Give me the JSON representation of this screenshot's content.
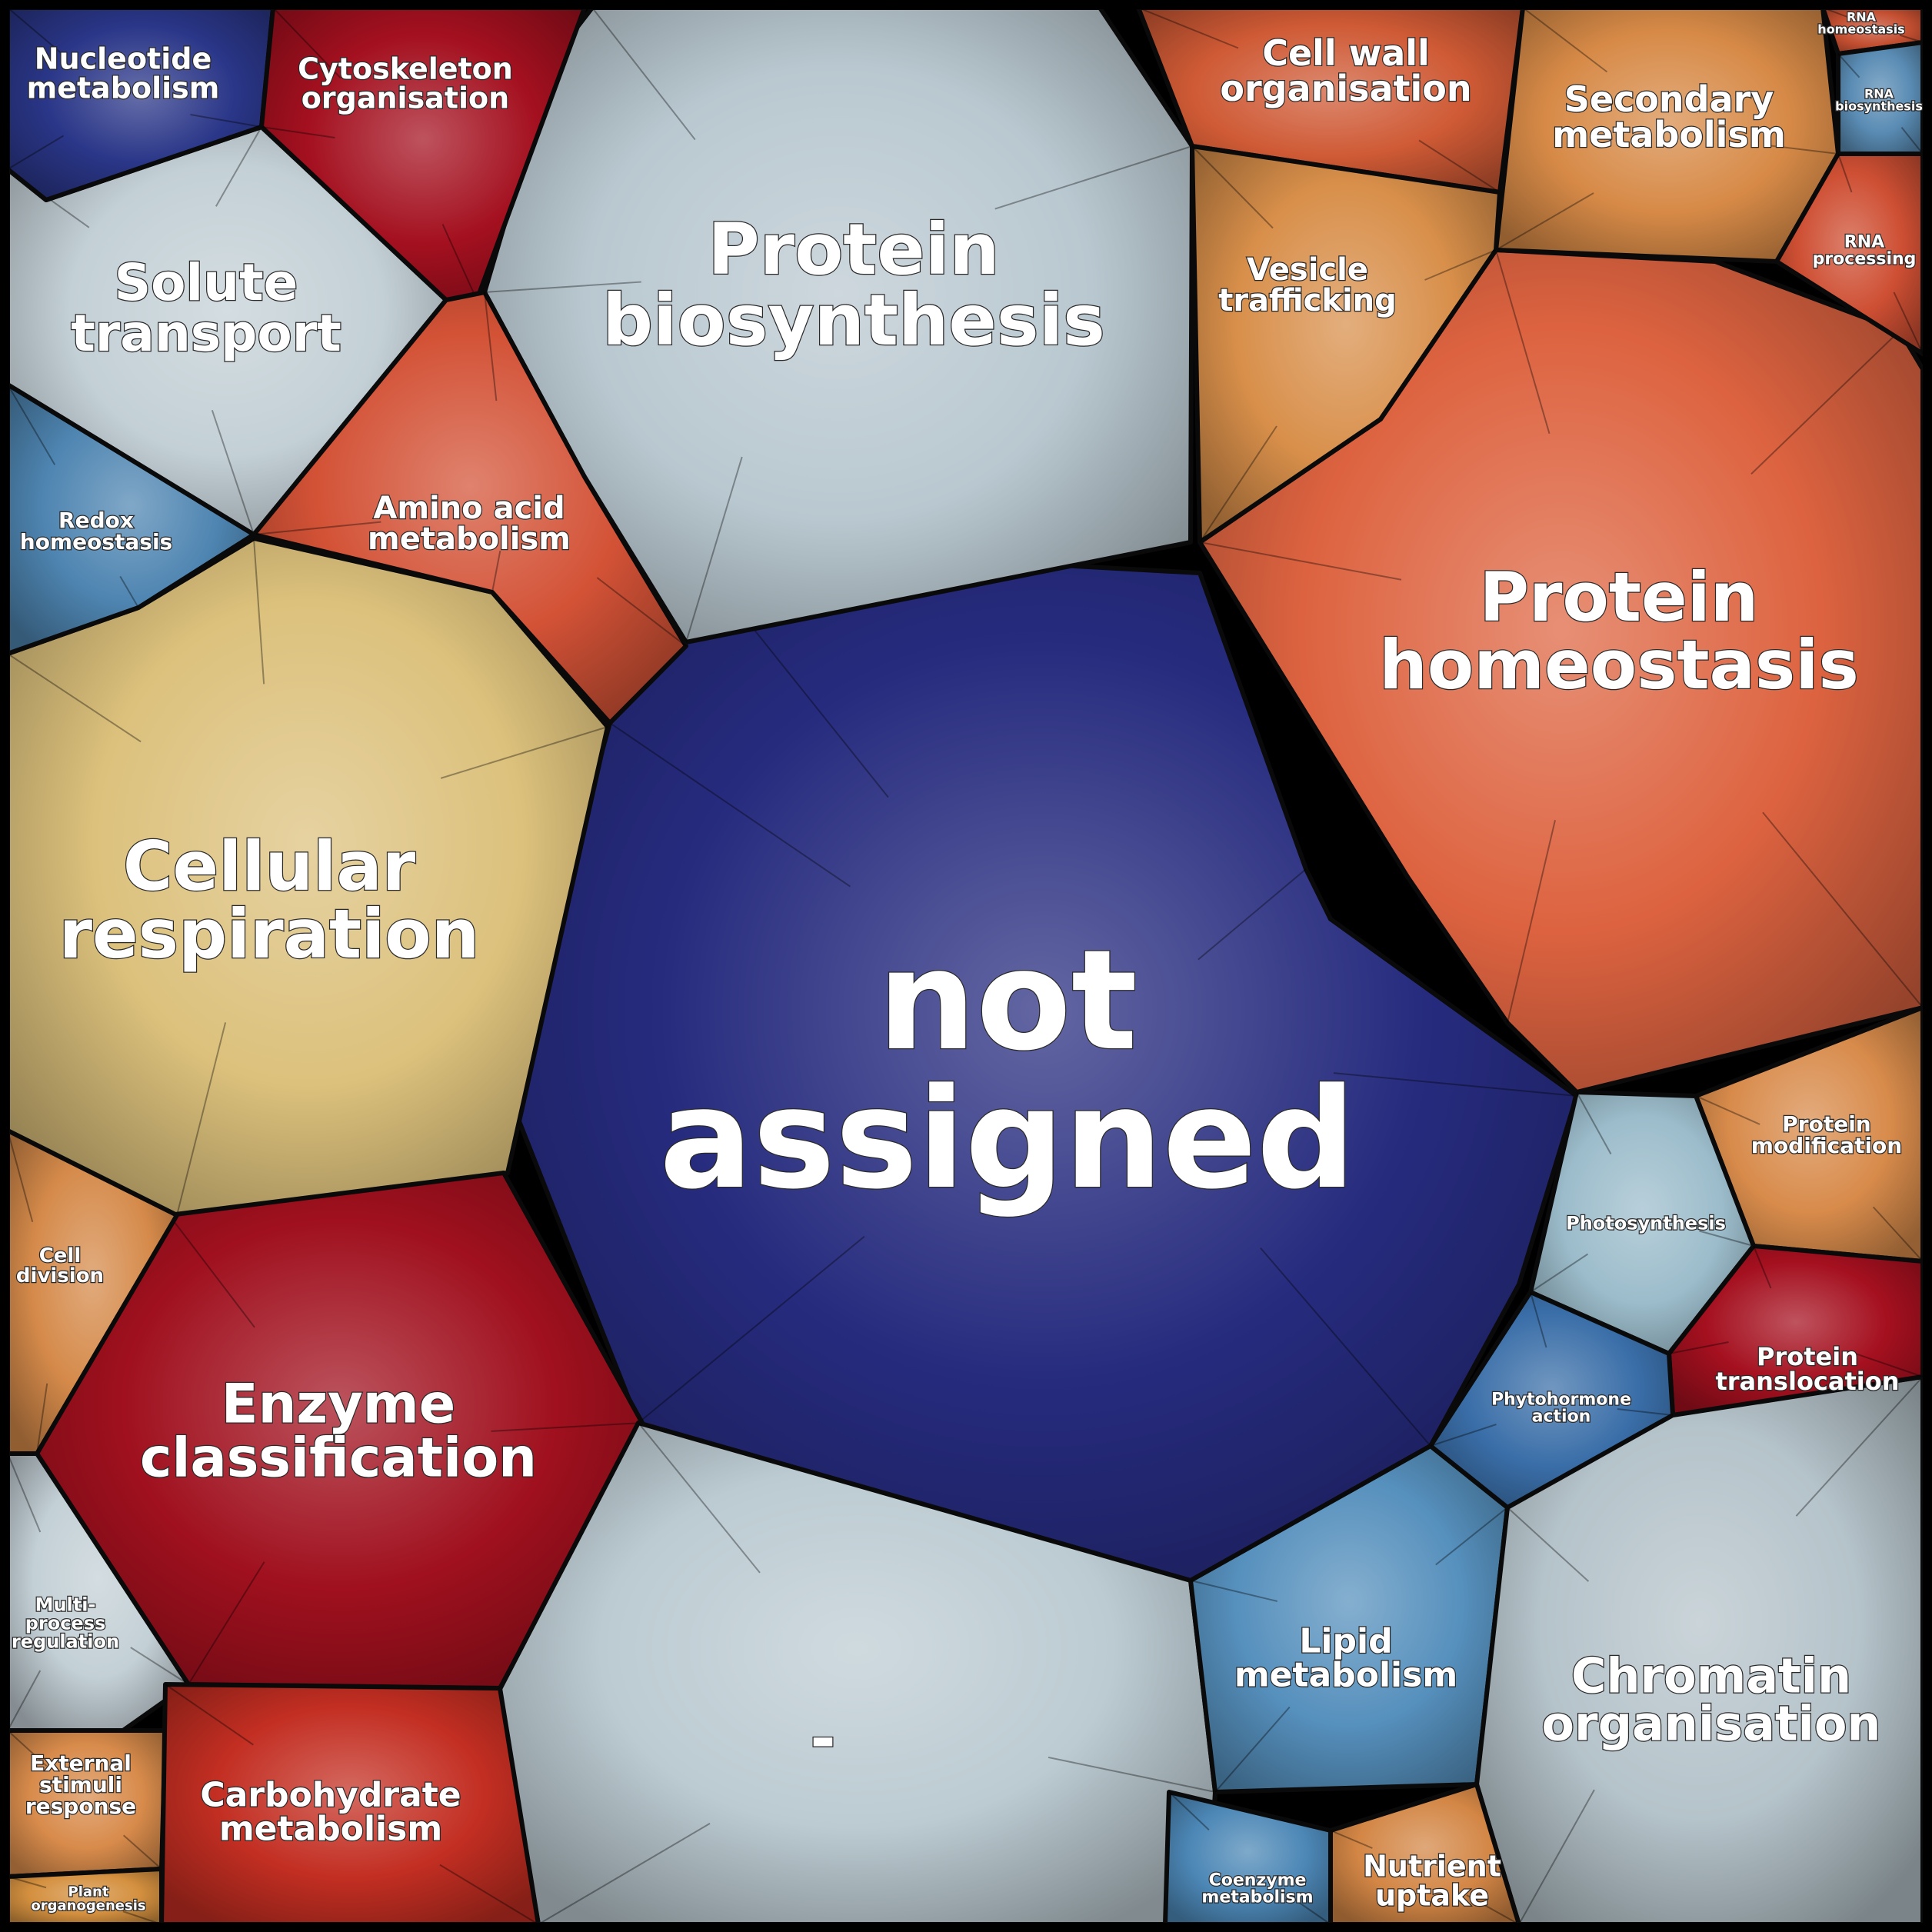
{
  "regions": [
    {
      "id": "not-assigned",
      "lines": [
        "not",
        "assigned"
      ],
      "color": "#262b7e",
      "size": 200
    },
    {
      "id": "protein-biosynthesis",
      "lines": [
        "Protein",
        "biosynthesis"
      ],
      "color": "#b9c8d0",
      "size": 100
    },
    {
      "id": "protein-homeostasis",
      "lines": [
        "Protein",
        "homeostasis"
      ],
      "color": "#dd6340",
      "size": 104
    },
    {
      "id": "cellular-respiration",
      "lines": [
        "Cellular",
        "respiration"
      ],
      "color": "#dcc17c",
      "size": 96
    },
    {
      "id": "enzyme-classification",
      "lines": [
        "Enzyme",
        "classification"
      ],
      "color": "#a0101e",
      "size": 68
    },
    {
      "id": "dash",
      "lines": [
        "-"
      ],
      "color": "#bccbd2",
      "size": 90
    },
    {
      "id": "solute-transport",
      "lines": [
        "Solute",
        "transport"
      ],
      "color": "#c3d0d6",
      "size": 64
    },
    {
      "id": "nucleotide-metabolism",
      "lines": [
        "Nucleotide",
        "metabolism"
      ],
      "color": "#2a3688",
      "size": 38
    },
    {
      "id": "cytoskeleton-organisation",
      "lines": [
        "Cytoskeleton",
        "organisation"
      ],
      "color": "#a4101f",
      "size": 38
    },
    {
      "id": "amino-acid-metabolism",
      "lines": [
        "Amino acid",
        "metabolism"
      ],
      "color": "#d35236",
      "size": 40
    },
    {
      "id": "redox-homeostasis",
      "lines": [
        "Redox",
        "homeostasis"
      ],
      "color": "#4e85b1",
      "size": 28
    },
    {
      "id": "cell-wall-organisation",
      "lines": [
        "Cell wall",
        "organisation"
      ],
      "color": "#cf5a35",
      "size": 44
    },
    {
      "id": "secondary-metabolism",
      "lines": [
        "Secondary",
        "metabolism"
      ],
      "color": "#d78a47",
      "size": 44
    },
    {
      "id": "vesicle-trafficking",
      "lines": [
        "Vesicle",
        "trafficking"
      ],
      "color": "#d88f4a",
      "size": 40
    },
    {
      "id": "rna-homeostasis",
      "lines": [
        "RNA",
        "homeostasis"
      ],
      "color": "#c44f31",
      "size": 16
    },
    {
      "id": "rna-biosynthesis",
      "lines": [
        "RNA",
        "biosynthesis"
      ],
      "color": "#5a8cb4",
      "size": 16
    },
    {
      "id": "rna-processing",
      "lines": [
        "RNA",
        "processing"
      ],
      "color": "#ce4f33",
      "size": 22
    },
    {
      "id": "cell-division",
      "lines": [
        "Cell",
        "division"
      ],
      "color": "#d58a4a",
      "size": 26
    },
    {
      "id": "multi-process-regulation",
      "lines": [
        "Multi-",
        "process",
        "regulation"
      ],
      "color": "#c3d0d6",
      "size": 24
    },
    {
      "id": "external-stimuli-response",
      "lines": [
        "External",
        "stimuli",
        "response"
      ],
      "color": "#d88b4b",
      "size": 28
    },
    {
      "id": "plant-organogenesis",
      "lines": [
        "Plant",
        "organogenesis"
      ],
      "color": "#d4903f",
      "size": 18
    },
    {
      "id": "carbohydrate-metabolism",
      "lines": [
        "Carbohydrate",
        "metabolism"
      ],
      "color": "#c32e22",
      "size": 44
    },
    {
      "id": "lipid-metabolism",
      "lines": [
        "Lipid",
        "metabolism"
      ],
      "color": "#5690bd",
      "size": 44
    },
    {
      "id": "chromatin-organisation",
      "lines": [
        "Chromatin",
        "organisation"
      ],
      "color": "#b5c3ca",
      "size": 62
    },
    {
      "id": "coenzyme-metabolism",
      "lines": [
        "Coenzyme",
        "metabolism"
      ],
      "color": "#4c87b6",
      "size": 22
    },
    {
      "id": "nutrient-uptake",
      "lines": [
        "Nutrient",
        "uptake"
      ],
      "color": "#d38645",
      "size": 38
    },
    {
      "id": "protein-modification",
      "lines": [
        "Protein",
        "modification"
      ],
      "color": "#d88b4b",
      "size": 28
    },
    {
      "id": "photosynthesis",
      "lines": [
        "Photosynthesis"
      ],
      "color": "#9cbccb",
      "size": 24
    },
    {
      "id": "protein-translocation",
      "lines": [
        "Protein",
        "translocation"
      ],
      "color": "#a5101f",
      "size": 32
    },
    {
      "id": "phytohormone-action",
      "lines": [
        "Phytohormone",
        "action"
      ],
      "color": "#3a6ea8",
      "size": 22
    }
  ]
}
